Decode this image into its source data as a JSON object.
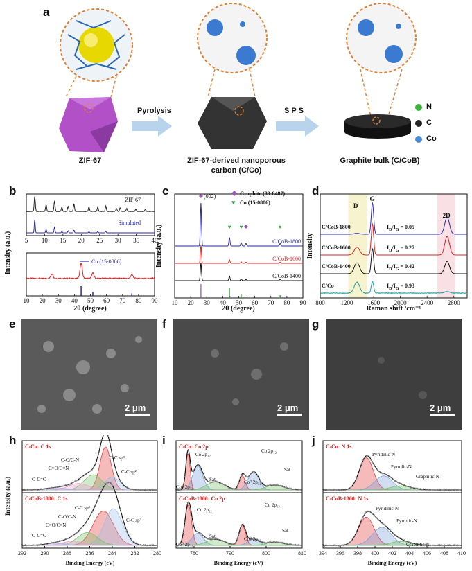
{
  "panels": {
    "a": "a",
    "b": "b",
    "c": "c",
    "d": "d",
    "e": "e",
    "f": "f",
    "g": "g",
    "h": "h",
    "i": "i",
    "j": "j"
  },
  "schematic": {
    "zif_label": "ZIF-67",
    "carbon_label_1": "ZIF-67-derived nanoporous",
    "carbon_label_2": "carbon (C/Co)",
    "bulk_label": "Graphite bulk (C/CoB)",
    "arrow1": "Pyrolysis",
    "arrow2": "S P S",
    "legend": [
      {
        "label": "N",
        "color": "#3cb43c"
      },
      {
        "label": "C",
        "color": "#222222"
      },
      {
        "label": "Co",
        "color": "#4a8ad8"
      }
    ]
  },
  "sem": {
    "e_scale": "2 μm",
    "f_scale": "2 μm",
    "g_scale": "2 μm"
  },
  "chart_data": [
    {
      "id": "b-top",
      "type": "line",
      "ylabel": "Intensity (a.u.)",
      "xlim": [
        5,
        40
      ],
      "xticks": [
        5,
        10,
        15,
        20,
        25,
        30,
        35,
        40
      ],
      "series": [
        {
          "name": "ZIF-67",
          "color": "#222222",
          "peaks": [
            [
              7.3,
              1.0
            ],
            [
              10.4,
              0.45
            ],
            [
              12.7,
              0.7
            ],
            [
              14.7,
              0.3
            ],
            [
              16.4,
              0.35
            ],
            [
              18.0,
              0.5
            ],
            [
              22.1,
              0.3
            ],
            [
              24.5,
              0.3
            ],
            [
              26.7,
              0.35
            ],
            [
              29.6,
              0.2
            ],
            [
              30.6,
              0.25
            ],
            [
              32.4,
              0.2
            ],
            [
              34.9,
              0.15
            ],
            [
              37.5,
              0.15
            ]
          ]
        },
        {
          "name": "Simulated",
          "color": "#2a2aa8",
          "peaks": [
            [
              7.3,
              1.0
            ],
            [
              10.4,
              0.25
            ],
            [
              12.7,
              0.45
            ],
            [
              14.7,
              0.1
            ],
            [
              16.4,
              0.15
            ],
            [
              18.0,
              0.2
            ],
            [
              22.1,
              0.08
            ],
            [
              24.5,
              0.1
            ],
            [
              26.7,
              0.12
            ]
          ]
        }
      ]
    },
    {
      "id": "b-bottom",
      "type": "line",
      "xlabel": "2θ (degree)",
      "xlim": [
        10,
        90
      ],
      "xticks": [
        10,
        20,
        30,
        40,
        50,
        60,
        70,
        80,
        90
      ],
      "series": [
        {
          "name": "",
          "color": "#e02020",
          "peaks": [
            [
              26.0,
              0.3
            ],
            [
              44.2,
              1.0
            ],
            [
              51.5,
              0.35
            ],
            [
              75.8,
              0.25
            ]
          ]
        },
        {
          "name": "Co (15-0806)",
          "color": "#2a2aa8",
          "sticks": [
            [
              44.2,
              1.0
            ],
            [
              51.5,
              0.42
            ],
            [
              75.8,
              0.25
            ]
          ]
        }
      ]
    },
    {
      "id": "c",
      "type": "line",
      "xlabel": "2θ (degree)",
      "ylabel": "Intensity (a.u.)",
      "xlim": [
        10,
        90
      ],
      "xticks": [
        10,
        20,
        30,
        40,
        50,
        60,
        70,
        80,
        90
      ],
      "peak_label": "(002)",
      "legend": [
        {
          "name": "Graphite (89-8487)",
          "color": "#9b59b6",
          "marker": "diamond"
        },
        {
          "name": "Co (15-0806)",
          "color": "#2eaa3c",
          "marker": "heart"
        }
      ],
      "series": [
        {
          "name": "C/CoB-1800",
          "color": "#2a2aa8",
          "label_color": "#2a2aa8",
          "peaks": [
            [
              26.4,
              1.0
            ],
            [
              44.2,
              0.2
            ],
            [
              51.5,
              0.08
            ],
            [
              54.5,
              0.06
            ],
            [
              75.8,
              0.06
            ]
          ]
        },
        {
          "name": "C/CoB-1600",
          "color": "#e02020",
          "label_color": "#e02020",
          "peaks": [
            [
              26.4,
              1.0
            ],
            [
              44.2,
              0.2
            ],
            [
              51.5,
              0.08
            ],
            [
              54.5,
              0.06
            ],
            [
              75.8,
              0.06
            ]
          ]
        },
        {
          "name": "C/CoB-1400",
          "color": "#111111",
          "label_color": "#111111",
          "peaks": [
            [
              26.4,
              1.0
            ],
            [
              44.2,
              0.25
            ],
            [
              51.5,
              0.1
            ],
            [
              54.5,
              0.06
            ],
            [
              75.8,
              0.08
            ]
          ]
        }
      ],
      "sticks": [
        {
          "color": "#9b59b6",
          "values": [
            [
              26.4,
              1.0
            ],
            [
              44.5,
              0.15
            ],
            [
              54.6,
              0.1
            ],
            [
              77.5,
              0.08
            ],
            [
              83.5,
              0.05
            ],
            [
              86.0,
              0.05
            ]
          ]
        },
        {
          "color": "#2eaa3c",
          "values": [
            [
              44.2,
              0.7
            ],
            [
              51.5,
              0.3
            ],
            [
              75.8,
              0.22
            ]
          ]
        }
      ]
    },
    {
      "id": "d",
      "type": "line",
      "xlabel": "Raman shift /cm⁻¹",
      "ylabel": "Intensity",
      "xlim": [
        800,
        3000
      ],
      "xticks": [
        800,
        1200,
        1600,
        2000,
        2400,
        2800
      ],
      "band_labels": [
        "D",
        "G",
        "2D"
      ],
      "series": [
        {
          "name": "C/CoB-1800",
          "ratio": "= 0.05",
          "color": "#2a2aa8",
          "D": 0.03,
          "G": 1.0,
          "D2": 0.55
        },
        {
          "name": "C/CoB-1600",
          "ratio": "= 0.27",
          "color": "#e02020",
          "D": 0.25,
          "G": 1.0,
          "D2": 0.6
        },
        {
          "name": "C/CoB-1400",
          "ratio": "= 0.42",
          "color": "#111111",
          "D": 0.35,
          "G": 0.8,
          "D2": 0.4
        },
        {
          "name": "C/Co",
          "ratio": "= 0.93",
          "color": "#20a0a0",
          "D": 0.35,
          "G": 0.37,
          "D2": 0.05
        }
      ]
    },
    {
      "id": "h",
      "type": "line",
      "xlabel": "Binding Energy (eV)",
      "ylabel": "Intensity (a.u.)",
      "xlim": [
        292,
        280
      ],
      "reversed": true,
      "xticks": [
        292,
        290,
        288,
        286,
        284,
        282,
        280
      ],
      "panels": [
        {
          "title": "C/Co: C 1s",
          "labels": [
            "C-C sp³",
            "C-C sp²",
            "C-O/C-N",
            "C=O/C=N",
            "O-C=O"
          ]
        },
        {
          "title": "C/CoB-1800: C 1s",
          "labels": [
            "C-C sp³",
            "C-C sp²",
            "C-O/C-N",
            "C=O/C=N",
            "O-C=O"
          ]
        }
      ]
    },
    {
      "id": "i",
      "type": "line",
      "xlabel": "Binding Energy (eV)",
      "xlim": [
        775,
        810
      ],
      "xticks": [
        780,
        790,
        800,
        810
      ],
      "panels": [
        {
          "title": "C/Co:  Co 2p",
          "labels": [
            "Co 2p₃₂",
            "Co 2p₁₂",
            "Co⁰ 2p₃₂",
            "Co⁰ 2p₁₂",
            "Sat.",
            "Sat."
          ]
        },
        {
          "title": "C/CoB-1800:  Co 2p",
          "labels": [
            "Co 2p₃₂",
            "Co 2p₁₂",
            "Co⁰ 2p₃₂",
            "Co⁰ 2p₁₂",
            "Sat.",
            "Sat."
          ]
        }
      ]
    },
    {
      "id": "j",
      "type": "line",
      "xlabel": "Binding Energy (eV)",
      "xlim": [
        394,
        410
      ],
      "xticks": [
        394,
        396,
        398,
        400,
        402,
        404,
        406,
        408,
        410
      ],
      "panels": [
        {
          "title": "C/Co:  N 1s",
          "labels": [
            "Pyridinic-N",
            "Pyrrolic-N",
            "Graphitic-N"
          ]
        },
        {
          "title": "C/CoB-1800:  N 1s",
          "labels": [
            "Pyridinic-N",
            "Pyrrolic-N",
            "Graphitic-N"
          ]
        }
      ]
    }
  ]
}
